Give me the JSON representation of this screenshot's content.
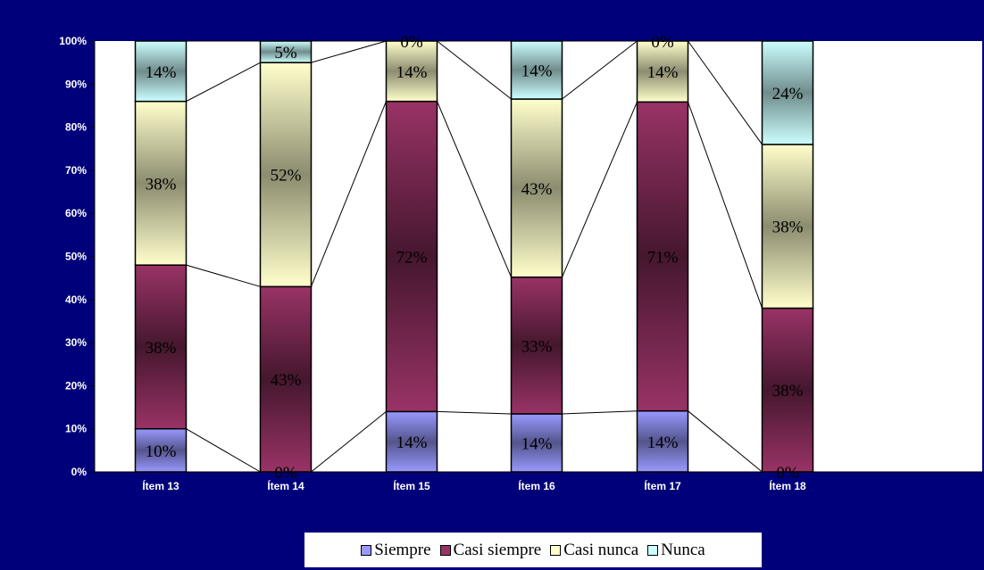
{
  "chart_data": {
    "type": "bar",
    "stacked": true,
    "percent": true,
    "categories": [
      "Ítem 13",
      "Ítem 14",
      "Ítem 15",
      "Ítem 16",
      "Ítem 17",
      "Ítem 18"
    ],
    "series": [
      {
        "name": "Siempre",
        "color": "#9999ff",
        "values": [
          10,
          0,
          14,
          14,
          14,
          0
        ],
        "labels": [
          "10%",
          "0%",
          "14%",
          "14%",
          "14%",
          "0%"
        ]
      },
      {
        "name": "Casi siempre",
        "color": "#993366",
        "values": [
          38,
          43,
          72,
          33,
          71,
          38
        ],
        "labels": [
          "38%",
          "43%",
          "72%",
          "33%",
          "71%",
          "38%"
        ]
      },
      {
        "name": "Casi nunca",
        "color": "#ffffcc",
        "values": [
          38,
          52,
          14,
          43,
          14,
          38
        ],
        "labels": [
          "38%",
          "52%",
          "14%",
          "43%",
          "14%",
          "38%"
        ]
      },
      {
        "name": "Nunca",
        "color": "#ccffff",
        "values": [
          14,
          5,
          0,
          14,
          0,
          24
        ],
        "labels": [
          "14%",
          "5%",
          "0%",
          "14%",
          "0%",
          "24%"
        ]
      }
    ],
    "yticks": [
      "0%",
      "10%",
      "20%",
      "30%",
      "40%",
      "50%",
      "60%",
      "70%",
      "80%",
      "90%",
      "100%"
    ],
    "ylim": [
      0,
      100
    ],
    "series_lines": true,
    "grid": false,
    "legend_position": "bottom"
  }
}
